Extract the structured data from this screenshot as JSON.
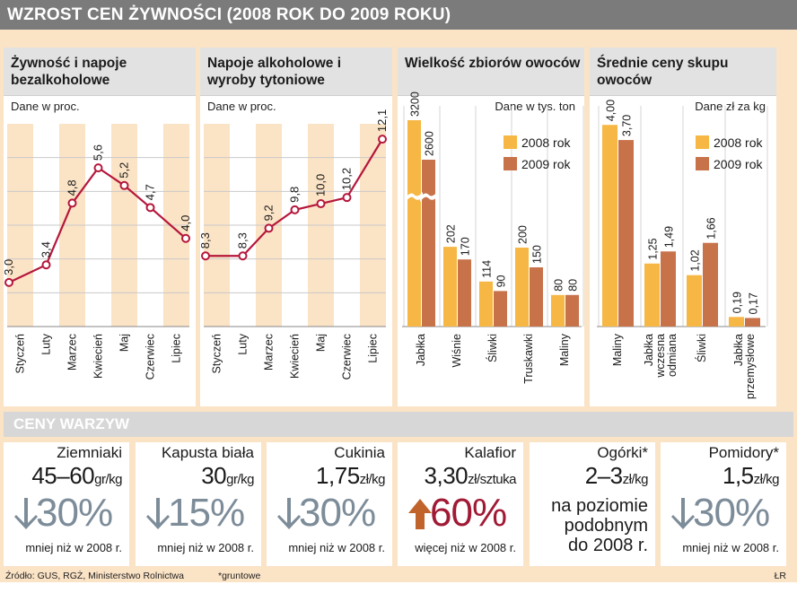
{
  "header": {
    "title": "WZROST CEN ŻYWNOŚCI (2008 ROK DO 2009 ROKU)"
  },
  "chart_data": [
    {
      "type": "line",
      "title": "Żywność i napoje bezalkoholowe",
      "unit": "Dane w proc.",
      "categories": [
        "Styczeń",
        "Luty",
        "Marzec",
        "Kwiecień",
        "Maj",
        "Czerwiec",
        "Lipiec"
      ],
      "values": [
        3.0,
        3.4,
        4.8,
        5.6,
        5.2,
        4.7,
        4.0
      ],
      "labels": [
        "3,0",
        "3,4",
        "4,8",
        "5,6",
        "5,2",
        "4,7",
        "4,0"
      ],
      "ylim": [
        2.0,
        6.6
      ],
      "color": "#b5173b"
    },
    {
      "type": "line",
      "title": "Napoje alkoholowe i wyroby tytoniowe",
      "unit": "Dane w proc.",
      "categories": [
        "Styczeń",
        "Luty",
        "Marzec",
        "Kwiecień",
        "Maj",
        "Czerwiec",
        "Lipiec"
      ],
      "values": [
        8.3,
        8.3,
        9.2,
        9.8,
        10.0,
        10.2,
        12.1
      ],
      "labels": [
        "8,3",
        "8,3",
        "9,2",
        "9,8",
        "10,0",
        "10,2",
        "12,1"
      ],
      "ylim": [
        6.0,
        12.6
      ],
      "color": "#b5173b"
    },
    {
      "type": "bar",
      "title": "Wielkość zbiorów owoców",
      "unit": "Dane w tys. ton",
      "categories": [
        "Jabłka",
        "Wiśnie",
        "Śliwki",
        "Truskawki",
        "Maliny"
      ],
      "series": [
        {
          "name": "2008 rok",
          "values": [
            3200,
            202,
            114,
            200,
            80
          ],
          "labels": [
            "3200",
            "202",
            "114",
            "200",
            "80"
          ],
          "color": "#f6b744"
        },
        {
          "name": "2009 rok",
          "values": [
            2600,
            170,
            90,
            150,
            80
          ],
          "labels": [
            "2600",
            "170",
            "90",
            "150",
            "80"
          ],
          "color": "#c8724a"
        }
      ],
      "axis_break": true
    },
    {
      "type": "bar",
      "title": "Średnie ceny skupu owoców",
      "unit": "Dane zł za kg",
      "categories": [
        "Maliny",
        "Jabłka wczesna odmiana",
        "Śliwki",
        "Jabłka przemysłowe"
      ],
      "series": [
        {
          "name": "2008 rok",
          "values": [
            4.0,
            1.25,
            1.02,
            0.19
          ],
          "labels": [
            "4,00",
            "1,25",
            "1,02",
            "0,19"
          ],
          "color": "#f6b744"
        },
        {
          "name": "2009 rok",
          "values": [
            3.7,
            1.49,
            1.66,
            0.17
          ],
          "labels": [
            "3,70",
            "1,49",
            "1,66",
            "0,17"
          ],
          "color": "#c8724a"
        }
      ],
      "ylim": [
        0,
        4.2
      ]
    }
  ],
  "vegetables": {
    "title": "CENY WARZYW",
    "items": [
      {
        "name": "Ziemniaki",
        "price": "45–60",
        "unit": "gr/kg",
        "direction": "down",
        "change": "30%",
        "note": "mniej niż w 2008 r."
      },
      {
        "name": "Kapusta biała",
        "price": "30",
        "unit": "gr/kg",
        "direction": "down",
        "change": "15%",
        "note": "mniej niż w 2008 r."
      },
      {
        "name": "Cukinia",
        "price": "1,75",
        "unit": "zł/kg",
        "direction": "down",
        "change": "30%",
        "note": "mniej niż w 2008 r."
      },
      {
        "name": "Kalafior",
        "price": "3,30",
        "unit": "zł/sztuka",
        "direction": "up",
        "change": "60%",
        "note": "więcej niż w 2008 r."
      },
      {
        "name": "Ogórki*",
        "price": "2–3",
        "unit": "zł/kg",
        "direction": "same",
        "same_lines": [
          "na poziomie",
          "podobnym",
          "do 2008 r."
        ]
      },
      {
        "name": "Pomidory*",
        "price": "1,5",
        "unit": "zł/kg",
        "direction": "down",
        "change": "30%",
        "note": "mniej niż w 2008 r."
      }
    ]
  },
  "footer": {
    "source": "Źródło: GUS, RGŻ, Ministerstwo Rolnictwa",
    "footnote": "*gruntowe",
    "credit": "ŁR"
  },
  "colors": {
    "accent": "#b5173b",
    "light_band": "#fbe3c6",
    "up": "#a01a35",
    "down": "#7d8c99"
  }
}
